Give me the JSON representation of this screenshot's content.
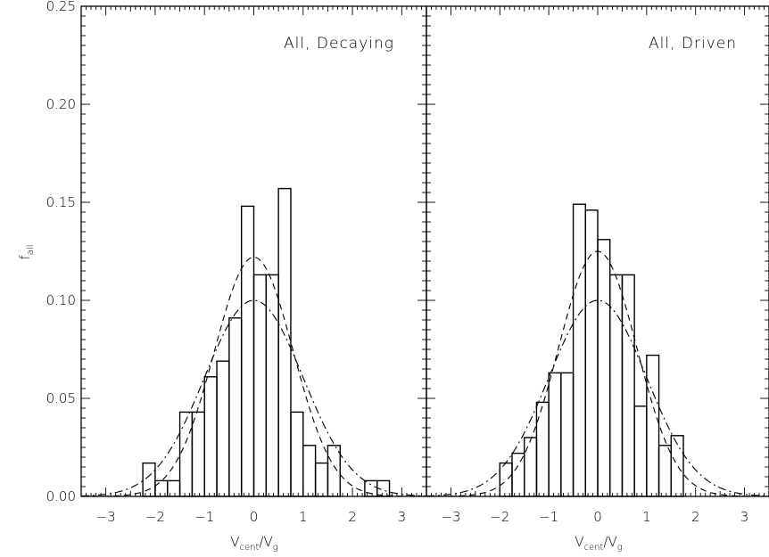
{
  "chart_data": [
    {
      "type": "histogram",
      "title": "All, Decaying",
      "xlabel": "V_cent/V_g",
      "ylabel": "f_all",
      "xlim": [
        -3.5,
        3.5
      ],
      "ylim": [
        0,
        0.25
      ],
      "xticks": [
        "-3",
        "-2",
        "-1",
        "0",
        "1",
        "2",
        "3"
      ],
      "yticks": [
        "0.00",
        "0.05",
        "0.10",
        "0.15",
        "0.20",
        "0.25"
      ],
      "histogram": {
        "bin_edges": [
          -2.25,
          -2.0,
          -1.75,
          -1.5,
          -1.25,
          -1.0,
          -0.75,
          -0.5,
          -0.25,
          0.0,
          0.25,
          0.5,
          0.75,
          1.0,
          1.25,
          1.5,
          1.75,
          2.0,
          2.25,
          2.5,
          2.75
        ],
        "values": [
          0.017,
          0.008,
          0.008,
          0.043,
          0.043,
          0.061,
          0.069,
          0.091,
          0.148,
          0.113,
          0.113,
          0.157,
          0.043,
          0.026,
          0.017,
          0.026,
          0.0,
          0.0,
          0.008,
          0.008
        ]
      },
      "series": [
        {
          "style": "dashed",
          "amplitude": 0.122,
          "mean": 0.0,
          "sigma": 0.8
        },
        {
          "style": "dash-dot",
          "amplitude": 0.1,
          "mean": 0.0,
          "sigma": 1.0
        }
      ]
    },
    {
      "type": "histogram",
      "title": "All, Driven",
      "xlabel": "V_cent/V_g",
      "ylabel": "",
      "xlim": [
        -3.5,
        3.5
      ],
      "ylim": [
        0,
        0.25
      ],
      "xticks": [
        "-3",
        "-2",
        "-1",
        "0",
        "1",
        "2",
        "3"
      ],
      "histogram": {
        "bin_edges": [
          -2.0,
          -1.75,
          -1.5,
          -1.25,
          -1.0,
          -0.75,
          -0.5,
          -0.25,
          0.0,
          0.25,
          0.5,
          0.75,
          1.0,
          1.25,
          1.5,
          1.75
        ],
        "values": [
          0.017,
          0.022,
          0.03,
          0.048,
          0.063,
          0.063,
          0.149,
          0.146,
          0.131,
          0.113,
          0.113,
          0.046,
          0.072,
          0.026,
          0.031
        ]
      },
      "series": [
        {
          "style": "dashed",
          "amplitude": 0.125,
          "mean": 0.0,
          "sigma": 0.8
        },
        {
          "style": "dash-dot",
          "amplitude": 0.1,
          "mean": 0.0,
          "sigma": 1.0
        }
      ]
    }
  ]
}
